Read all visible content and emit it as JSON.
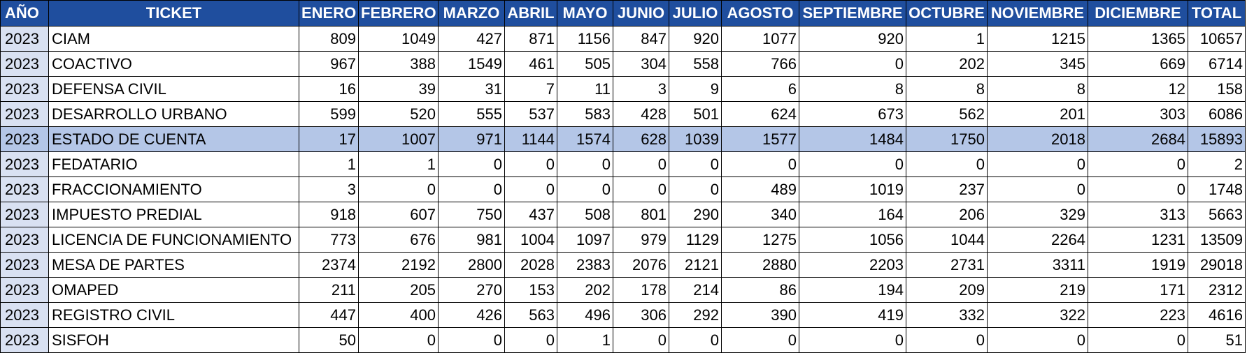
{
  "table": {
    "columns": [
      "AÑO",
      "TICKET",
      "ENERO",
      "FEBRERO",
      "MARZO",
      "ABRIL",
      "MAYO",
      "JUNIO",
      "JULIO",
      "AGOSTO",
      "SEPTIEMBRE",
      "OCTUBRE",
      "NOVIEMBRE",
      "DICIEMBRE",
      "TOTAL"
    ],
    "header_color": "#1f4e9e",
    "year_cell_color": "#d9e1f2",
    "highlight_color": "#b4c6e7",
    "highlighted_row": "ESTADO DE CUENTA",
    "rows": [
      {
        "anio": "2023",
        "ticket": "CIAM",
        "values": [
          "809",
          "1049",
          "427",
          "871",
          "1156",
          "847",
          "920",
          "1077",
          "920",
          "1",
          "1215",
          "1365",
          "10657"
        ]
      },
      {
        "anio": "2023",
        "ticket": "COACTIVO",
        "values": [
          "967",
          "388",
          "1549",
          "461",
          "505",
          "304",
          "558",
          "766",
          "0",
          "202",
          "345",
          "669",
          "6714"
        ]
      },
      {
        "anio": "2023",
        "ticket": "DEFENSA CIVIL",
        "values": [
          "16",
          "39",
          "31",
          "7",
          "11",
          "3",
          "9",
          "6",
          "8",
          "8",
          "8",
          "12",
          "158"
        ]
      },
      {
        "anio": "2023",
        "ticket": "DESARROLLO URBANO",
        "values": [
          "599",
          "520",
          "555",
          "537",
          "583",
          "428",
          "501",
          "624",
          "673",
          "562",
          "201",
          "303",
          "6086"
        ]
      },
      {
        "anio": "2023",
        "ticket": "ESTADO DE CUENTA",
        "values": [
          "17",
          "1007",
          "971",
          "1144",
          "1574",
          "628",
          "1039",
          "1577",
          "1484",
          "1750",
          "2018",
          "2684",
          "15893"
        ]
      },
      {
        "anio": "2023",
        "ticket": "FEDATARIO",
        "values": [
          "1",
          "1",
          "0",
          "0",
          "0",
          "0",
          "0",
          "0",
          "0",
          "0",
          "0",
          "0",
          "2"
        ]
      },
      {
        "anio": "2023",
        "ticket": "FRACCIONAMIENTO",
        "values": [
          "3",
          "0",
          "0",
          "0",
          "0",
          "0",
          "0",
          "489",
          "1019",
          "237",
          "0",
          "0",
          "1748"
        ]
      },
      {
        "anio": "2023",
        "ticket": "IMPUESTO PREDIAL",
        "values": [
          "918",
          "607",
          "750",
          "437",
          "508",
          "801",
          "290",
          "340",
          "164",
          "206",
          "329",
          "313",
          "5663"
        ]
      },
      {
        "anio": "2023",
        "ticket": "LICENCIA DE FUNCIONAMIENTO",
        "values": [
          "773",
          "676",
          "981",
          "1004",
          "1097",
          "979",
          "1129",
          "1275",
          "1056",
          "1044",
          "2264",
          "1231",
          "13509"
        ]
      },
      {
        "anio": "2023",
        "ticket": "MESA DE PARTES",
        "values": [
          "2374",
          "2192",
          "2800",
          "2028",
          "2383",
          "2076",
          "2121",
          "2880",
          "2203",
          "2731",
          "3311",
          "1919",
          "29018"
        ]
      },
      {
        "anio": "2023",
        "ticket": "OMAPED",
        "values": [
          "211",
          "205",
          "270",
          "153",
          "202",
          "178",
          "214",
          "86",
          "194",
          "209",
          "219",
          "171",
          "2312"
        ]
      },
      {
        "anio": "2023",
        "ticket": "REGISTRO CIVIL",
        "values": [
          "447",
          "400",
          "426",
          "563",
          "496",
          "306",
          "292",
          "390",
          "419",
          "332",
          "322",
          "223",
          "4616"
        ]
      },
      {
        "anio": "2023",
        "ticket": "SISFOH",
        "values": [
          "50",
          "0",
          "0",
          "0",
          "1",
          "0",
          "0",
          "0",
          "0",
          "0",
          "0",
          "0",
          "51"
        ]
      }
    ]
  }
}
